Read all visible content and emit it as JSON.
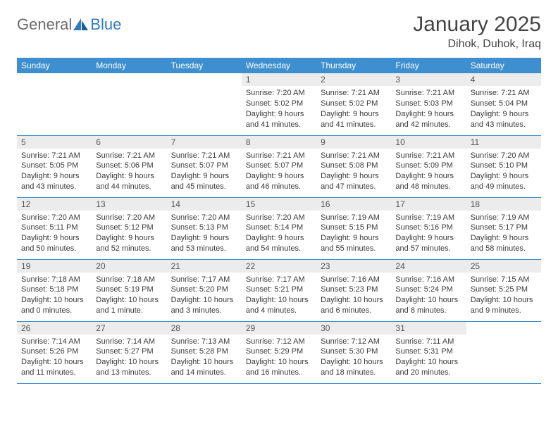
{
  "brand": {
    "text1": "General",
    "text2": "Blue"
  },
  "title": "January 2025",
  "location": "Dihok, Duhok, Iraq",
  "colors": {
    "header_bg": "#3d8fcf",
    "header_text": "#ffffff",
    "daynum_bg": "#ececec",
    "rule": "#3d8fcf",
    "logo_blue": "#2f7bbf",
    "logo_gray": "#6b6b6b"
  },
  "day_names": [
    "Sunday",
    "Monday",
    "Tuesday",
    "Wednesday",
    "Thursday",
    "Friday",
    "Saturday"
  ],
  "weeks": [
    [
      null,
      null,
      null,
      {
        "n": "1",
        "sr": "7:20 AM",
        "ss": "5:02 PM",
        "dl": "9 hours and 41 minutes."
      },
      {
        "n": "2",
        "sr": "7:21 AM",
        "ss": "5:02 PM",
        "dl": "9 hours and 41 minutes."
      },
      {
        "n": "3",
        "sr": "7:21 AM",
        "ss": "5:03 PM",
        "dl": "9 hours and 42 minutes."
      },
      {
        "n": "4",
        "sr": "7:21 AM",
        "ss": "5:04 PM",
        "dl": "9 hours and 43 minutes."
      }
    ],
    [
      {
        "n": "5",
        "sr": "7:21 AM",
        "ss": "5:05 PM",
        "dl": "9 hours and 43 minutes."
      },
      {
        "n": "6",
        "sr": "7:21 AM",
        "ss": "5:06 PM",
        "dl": "9 hours and 44 minutes."
      },
      {
        "n": "7",
        "sr": "7:21 AM",
        "ss": "5:07 PM",
        "dl": "9 hours and 45 minutes."
      },
      {
        "n": "8",
        "sr": "7:21 AM",
        "ss": "5:07 PM",
        "dl": "9 hours and 46 minutes."
      },
      {
        "n": "9",
        "sr": "7:21 AM",
        "ss": "5:08 PM",
        "dl": "9 hours and 47 minutes."
      },
      {
        "n": "10",
        "sr": "7:21 AM",
        "ss": "5:09 PM",
        "dl": "9 hours and 48 minutes."
      },
      {
        "n": "11",
        "sr": "7:20 AM",
        "ss": "5:10 PM",
        "dl": "9 hours and 49 minutes."
      }
    ],
    [
      {
        "n": "12",
        "sr": "7:20 AM",
        "ss": "5:11 PM",
        "dl": "9 hours and 50 minutes."
      },
      {
        "n": "13",
        "sr": "7:20 AM",
        "ss": "5:12 PM",
        "dl": "9 hours and 52 minutes."
      },
      {
        "n": "14",
        "sr": "7:20 AM",
        "ss": "5:13 PM",
        "dl": "9 hours and 53 minutes."
      },
      {
        "n": "15",
        "sr": "7:20 AM",
        "ss": "5:14 PM",
        "dl": "9 hours and 54 minutes."
      },
      {
        "n": "16",
        "sr": "7:19 AM",
        "ss": "5:15 PM",
        "dl": "9 hours and 55 minutes."
      },
      {
        "n": "17",
        "sr": "7:19 AM",
        "ss": "5:16 PM",
        "dl": "9 hours and 57 minutes."
      },
      {
        "n": "18",
        "sr": "7:19 AM",
        "ss": "5:17 PM",
        "dl": "9 hours and 58 minutes."
      }
    ],
    [
      {
        "n": "19",
        "sr": "7:18 AM",
        "ss": "5:18 PM",
        "dl": "10 hours and 0 minutes."
      },
      {
        "n": "20",
        "sr": "7:18 AM",
        "ss": "5:19 PM",
        "dl": "10 hours and 1 minute."
      },
      {
        "n": "21",
        "sr": "7:17 AM",
        "ss": "5:20 PM",
        "dl": "10 hours and 3 minutes."
      },
      {
        "n": "22",
        "sr": "7:17 AM",
        "ss": "5:21 PM",
        "dl": "10 hours and 4 minutes."
      },
      {
        "n": "23",
        "sr": "7:16 AM",
        "ss": "5:23 PM",
        "dl": "10 hours and 6 minutes."
      },
      {
        "n": "24",
        "sr": "7:16 AM",
        "ss": "5:24 PM",
        "dl": "10 hours and 8 minutes."
      },
      {
        "n": "25",
        "sr": "7:15 AM",
        "ss": "5:25 PM",
        "dl": "10 hours and 9 minutes."
      }
    ],
    [
      {
        "n": "26",
        "sr": "7:14 AM",
        "ss": "5:26 PM",
        "dl": "10 hours and 11 minutes."
      },
      {
        "n": "27",
        "sr": "7:14 AM",
        "ss": "5:27 PM",
        "dl": "10 hours and 13 minutes."
      },
      {
        "n": "28",
        "sr": "7:13 AM",
        "ss": "5:28 PM",
        "dl": "10 hours and 14 minutes."
      },
      {
        "n": "29",
        "sr": "7:12 AM",
        "ss": "5:29 PM",
        "dl": "10 hours and 16 minutes."
      },
      {
        "n": "30",
        "sr": "7:12 AM",
        "ss": "5:30 PM",
        "dl": "10 hours and 18 minutes."
      },
      {
        "n": "31",
        "sr": "7:11 AM",
        "ss": "5:31 PM",
        "dl": "10 hours and 20 minutes."
      },
      null
    ]
  ],
  "labels": {
    "sunrise": "Sunrise: ",
    "sunset": "Sunset: ",
    "daylight": "Daylight: "
  }
}
